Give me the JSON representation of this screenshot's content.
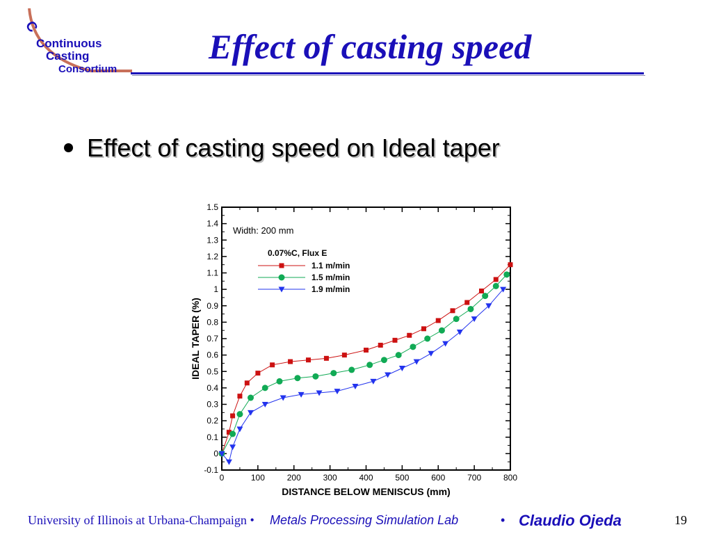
{
  "slide": {
    "title": "Effect of casting speed",
    "bullet": "Effect of casting speed on Ideal taper",
    "logo": {
      "line1": "Continuous",
      "line2": "Casting",
      "line3": "Consortium"
    },
    "footer": {
      "university": "University of Illinois at Urbana-Champaign",
      "separator": "•",
      "lab": "Metals Processing Simulation Lab",
      "author": "Claudio Ojeda",
      "page": "19"
    }
  },
  "colors": {
    "title_blue": "#1a0fb8",
    "series_1": "#cc1111",
    "series_2": "#11aa55",
    "series_3": "#2233ee"
  },
  "chart_data": {
    "type": "line",
    "title": "",
    "xlabel": "DISTANCE BELOW MENISCUS (mm)",
    "ylabel": "IDEAL TAPER (%)",
    "xlim": [
      0,
      800
    ],
    "ylim": [
      -0.1,
      1.5
    ],
    "xticks": [
      0,
      100,
      200,
      300,
      400,
      500,
      600,
      700,
      800
    ],
    "yticks": [
      -0.1,
      0,
      0.1,
      0.2,
      0.3,
      0.4,
      0.5,
      0.6,
      0.7,
      0.8,
      0.9,
      1,
      1.1,
      1.2,
      1.3,
      1.4,
      1.5
    ],
    "grid": false,
    "annotation": "Width: 200 mm",
    "legend_title": "0.07%C, Flux E",
    "legend_position": "top-left",
    "series": [
      {
        "name": "1.1 m/min",
        "marker": "square",
        "color": "#cc1111",
        "x": [
          0,
          20,
          30,
          50,
          70,
          100,
          140,
          190,
          240,
          290,
          340,
          400,
          440,
          480,
          520,
          560,
          600,
          640,
          680,
          720,
          760,
          800
        ],
        "y": [
          0,
          0.13,
          0.23,
          0.35,
          0.43,
          0.49,
          0.54,
          0.56,
          0.57,
          0.58,
          0.6,
          0.63,
          0.66,
          0.69,
          0.72,
          0.76,
          0.81,
          0.87,
          0.92,
          0.99,
          1.06,
          1.15
        ]
      },
      {
        "name": "1.5 m/min",
        "marker": "circle",
        "color": "#11aa55",
        "x": [
          0,
          30,
          50,
          80,
          120,
          160,
          210,
          260,
          310,
          360,
          410,
          450,
          490,
          530,
          570,
          610,
          650,
          690,
          730,
          760,
          790
        ],
        "y": [
          0,
          0.12,
          0.24,
          0.34,
          0.4,
          0.44,
          0.46,
          0.47,
          0.49,
          0.51,
          0.54,
          0.57,
          0.6,
          0.65,
          0.7,
          0.75,
          0.82,
          0.88,
          0.96,
          1.02,
          1.09
        ]
      },
      {
        "name": "1.9 m/min",
        "marker": "triangle-down",
        "color": "#2233ee",
        "x": [
          0,
          20,
          30,
          50,
          80,
          120,
          170,
          220,
          270,
          320,
          370,
          420,
          460,
          500,
          540,
          580,
          620,
          660,
          700,
          740,
          780
        ],
        "y": [
          0,
          -0.05,
          0.04,
          0.15,
          0.25,
          0.3,
          0.34,
          0.36,
          0.37,
          0.38,
          0.41,
          0.44,
          0.48,
          0.52,
          0.56,
          0.61,
          0.67,
          0.74,
          0.82,
          0.9,
          1.0
        ]
      }
    ]
  }
}
